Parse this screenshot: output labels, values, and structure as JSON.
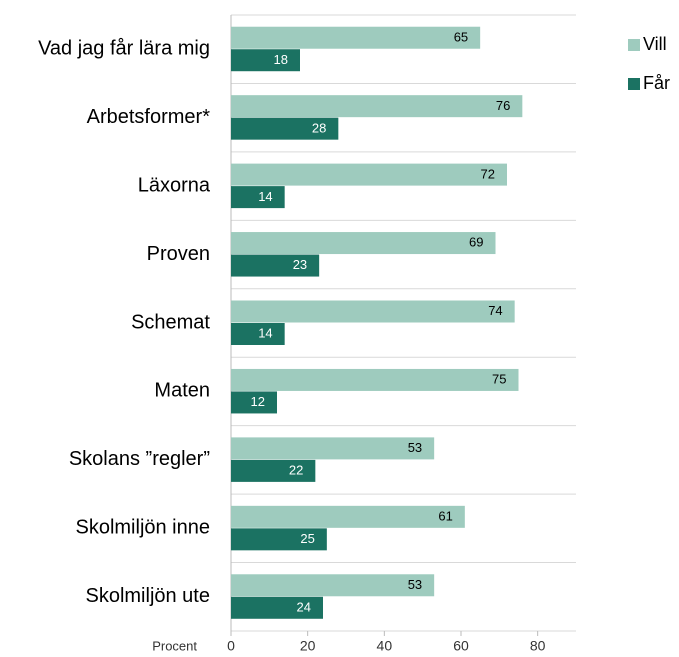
{
  "chart_data": {
    "type": "hbar",
    "categories": [
      "Vad jag får lära mig",
      "Arbetsformer*",
      "Läxorna",
      "Proven",
      "Schemat",
      "Maten",
      "Skolans ”regler”",
      "Skolmiljön inne",
      "Skolmiljön ute"
    ],
    "series": [
      {
        "name": "Vill",
        "color": "#9ecbbe",
        "values": [
          65,
          76,
          72,
          69,
          74,
          75,
          53,
          61,
          53
        ]
      },
      {
        "name": "Får",
        "color": "#1b7262",
        "values": [
          18,
          28,
          14,
          23,
          14,
          12,
          22,
          25,
          24
        ]
      }
    ],
    "x_label": "Procent",
    "xlim": [
      0,
      90
    ],
    "xticks": [
      0,
      20,
      40,
      60,
      80
    ],
    "legend": "top-right"
  }
}
